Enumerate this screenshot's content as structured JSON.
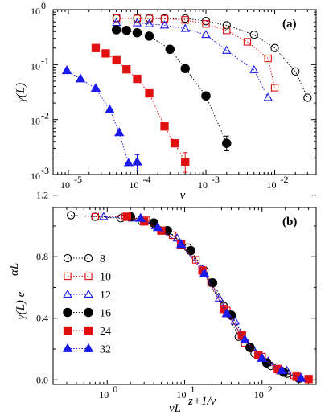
{
  "chart_data": [
    {
      "panel": "(a)",
      "type": "scatter",
      "xlabel": "v",
      "ylabel": "γ(L)",
      "xscale": "log",
      "yscale": "log",
      "xlim": [
        6e-06,
        0.04
      ],
      "ylim": [
        0.001,
        1
      ],
      "x_ticks": [
        "10",
        "10",
        "10",
        "10"
      ],
      "x_tick_exponents": [
        "-5",
        "-4",
        "-3",
        "-2"
      ],
      "y_ticks": [
        "10",
        "10",
        "10",
        "10"
      ],
      "y_tick_exponents": [
        "-3",
        "-2",
        "-1",
        "0"
      ],
      "y_tick_special": "1",
      "series": [
        {
          "name": "8",
          "color": "#000000",
          "marker": "circle",
          "filled": false,
          "points": [
            [
              5e-05,
              0.7
            ],
            [
              0.0001,
              0.7
            ],
            [
              0.00015,
              0.7
            ],
            [
              0.00025,
              0.69
            ],
            [
              0.0005,
              0.69
            ],
            [
              0.001,
              0.62
            ],
            [
              0.002,
              0.52
            ],
            [
              0.005,
              0.35
            ],
            [
              0.01,
              0.2
            ],
            [
              0.02,
              0.075
            ],
            [
              0.03,
              0.025
            ]
          ]
        },
        {
          "name": "10",
          "color": "#e01010",
          "marker": "square",
          "filled": false,
          "points": [
            [
              5e-05,
              0.7
            ],
            [
              0.0001,
              0.69
            ],
            [
              0.00015,
              0.69
            ],
            [
              0.00025,
              0.68
            ],
            [
              0.0005,
              0.65
            ],
            [
              0.001,
              0.55
            ],
            [
              0.002,
              0.42
            ],
            [
              0.004,
              0.26
            ],
            [
              0.008,
              0.13
            ],
            [
              0.01,
              0.038
            ]
          ]
        },
        {
          "name": "12",
          "color": "#1a1aee",
          "marker": "triangle",
          "filled": false,
          "points": [
            [
              5e-05,
              0.58
            ],
            [
              0.0001,
              0.57
            ],
            [
              0.00015,
              0.55
            ],
            [
              0.00025,
              0.52
            ],
            [
              0.0005,
              0.45
            ],
            [
              0.001,
              0.35
            ],
            [
              0.002,
              0.18
            ],
            [
              0.005,
              0.08
            ],
            [
              0.008,
              0.025
            ]
          ]
        },
        {
          "name": "16",
          "color": "#000000",
          "marker": "circle",
          "filled": true,
          "points": [
            [
              5e-05,
              0.43
            ],
            [
              7e-05,
              0.42
            ],
            [
              0.0001,
              0.38
            ],
            [
              0.00015,
              0.33
            ],
            [
              0.0003,
              0.19
            ],
            [
              0.0005,
              0.085
            ],
            [
              0.001,
              0.027
            ],
            [
              0.002,
              0.0037
            ]
          ],
          "errors": [
            null,
            null,
            null,
            null,
            null,
            null,
            null,
            [
              0.0027,
              0.005
            ]
          ]
        },
        {
          "name": "24",
          "color": "#e01010",
          "marker": "square",
          "filled": true,
          "points": [
            [
              2.5e-05,
              0.2
            ],
            [
              3.5e-05,
              0.16
            ],
            [
              5e-05,
              0.12
            ],
            [
              7e-05,
              0.082
            ],
            [
              0.0001,
              0.055
            ],
            [
              0.00015,
              0.03
            ],
            [
              0.00025,
              0.0075
            ],
            [
              0.00035,
              0.0037
            ],
            [
              0.0005,
              0.0017
            ]
          ],
          "errors": [
            null,
            null,
            null,
            null,
            null,
            null,
            null,
            null,
            [
              0.0011,
              0.0025
            ]
          ]
        },
        {
          "name": "32",
          "color": "#1a1aee",
          "marker": "triangle",
          "filled": true,
          "points": [
            [
              9.5e-06,
              0.078
            ],
            [
              1.5e-05,
              0.055
            ],
            [
              2.5e-05,
              0.037
            ],
            [
              4e-05,
              0.015
            ],
            [
              5.5e-05,
              0.0058
            ],
            [
              7.5e-05,
              0.0016
            ],
            [
              0.0001,
              0.0017
            ]
          ],
          "errors": [
            null,
            null,
            null,
            null,
            null,
            null,
            [
              0.0012,
              0.0023
            ]
          ]
        }
      ]
    },
    {
      "panel": "(b)",
      "type": "scatter",
      "xlabel": "vL",
      "xlabel_superscript": "z+1/ν",
      "ylabel": "γ(L) e",
      "ylabel_superscript": "αL",
      "xscale": "log",
      "yscale": "linear",
      "xlim": [
        0.2,
        500
      ],
      "ylim": [
        -0.03,
        1.12
      ],
      "x_ticks": [
        "10",
        "10",
        "10"
      ],
      "x_tick_exponents": [
        "0",
        "1",
        "2"
      ],
      "y_ticks": [
        "0.0",
        "0.4",
        "0.8",
        "1.2"
      ],
      "y_tick_values": [
        0.0,
        0.4,
        0.8,
        1.2
      ],
      "legend": {
        "position": "center-left",
        "entries": [
          "8",
          "10",
          "12",
          "16",
          "24",
          "32"
        ]
      },
      "series": [
        {
          "name": "8",
          "color": "#000000",
          "marker": "circle",
          "filled": false,
          "points": [
            [
              0.34,
              1.07
            ],
            [
              0.7,
              1.06
            ],
            [
              1.5,
              1.05
            ],
            [
              2.8,
              1.03
            ],
            [
              6,
              0.97
            ],
            [
              11,
              0.86
            ],
            [
              18,
              0.71
            ],
            [
              32,
              0.48
            ],
            [
              50,
              0.28
            ],
            [
              80,
              0.17
            ],
            [
              130,
              0.09
            ],
            [
              210,
              0.04
            ]
          ]
        },
        {
          "name": "10",
          "color": "#e01010",
          "marker": "square",
          "filled": false,
          "points": [
            [
              0.7,
              1.06
            ],
            [
              1.7,
              1.06
            ],
            [
              3.2,
              1.04
            ],
            [
              7,
              0.94
            ],
            [
              14,
              0.78
            ],
            [
              22,
              0.63
            ],
            [
              35,
              0.45
            ],
            [
              60,
              0.24
            ],
            [
              100,
              0.15
            ],
            [
              170,
              0.06
            ],
            [
              260,
              0.03
            ]
          ]
        },
        {
          "name": "12",
          "color": "#1a1aee",
          "marker": "triangle",
          "filled": false,
          "points": [
            [
              0.9,
              1.06
            ],
            [
              2.1,
              1.05
            ],
            [
              4.2,
              1.0
            ],
            [
              8,
              0.92
            ],
            [
              17,
              0.72
            ],
            [
              28,
              0.53
            ],
            [
              45,
              0.38
            ],
            [
              75,
              0.21
            ],
            [
              120,
              0.12
            ],
            [
              210,
              0.06
            ],
            [
              300,
              0.02
            ]
          ]
        },
        {
          "name": "16",
          "color": "#000000",
          "marker": "circle",
          "filled": true,
          "points": [
            [
              2,
              1.06
            ],
            [
              4,
              1.02
            ],
            [
              6,
              0.97
            ],
            [
              12,
              0.84
            ],
            [
              23,
              0.63
            ],
            [
              40,
              0.42
            ],
            [
              70,
              0.21
            ],
            [
              115,
              0.11
            ],
            [
              190,
              0.05
            ],
            [
              300,
              0.01
            ]
          ]
        },
        {
          "name": "24",
          "color": "#e01010",
          "marker": "square",
          "filled": true,
          "points": [
            [
              1.8,
              1.06
            ],
            [
              3,
              1.03
            ],
            [
              5,
              0.97
            ],
            [
              9,
              0.88
            ],
            [
              17,
              0.71
            ],
            [
              32,
              0.46
            ],
            [
              55,
              0.29
            ],
            [
              90,
              0.16
            ],
            [
              160,
              0.07
            ],
            [
              280,
              0.02
            ],
            [
              400,
              0.005
            ]
          ]
        },
        {
          "name": "32",
          "color": "#1a1aee",
          "marker": "triangle",
          "filled": true,
          "points": [
            [
              2.7,
              1.05
            ],
            [
              4.5,
              0.99
            ],
            [
              9,
              0.88
            ],
            [
              18,
              0.69
            ],
            [
              35,
              0.43
            ],
            [
              60,
              0.26
            ],
            [
              100,
              0.14
            ],
            [
              180,
              0.06
            ],
            [
              320,
              0.01
            ]
          ]
        }
      ]
    }
  ]
}
